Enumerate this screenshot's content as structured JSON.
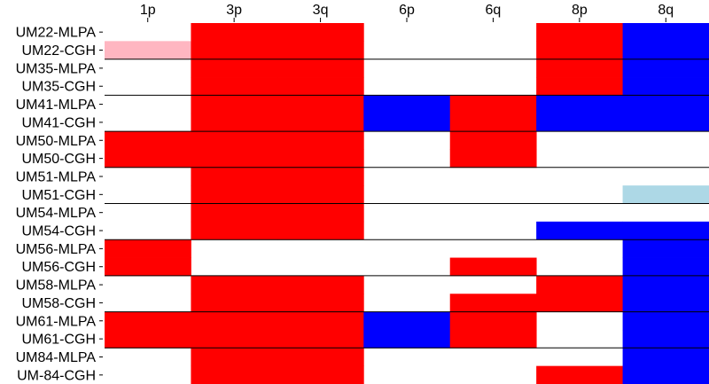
{
  "chart_data": {
    "type": "heatmap",
    "title": "",
    "xlabel": "",
    "ylabel": "",
    "columns": [
      "1p",
      "3p",
      "3q",
      "6p",
      "6q",
      "8p",
      "8q"
    ],
    "rows": [
      "UM22-MLPA",
      "UM22-CGH",
      "UM35-MLPA",
      "UM35-CGH",
      "UM41-MLPA",
      "UM41-CGH",
      "UM50-MLPA",
      "UM50-CGH",
      "UM51-MLPA",
      "UM51-CGH",
      "UM54-MLPA",
      "UM54-CGH",
      "UM56-MLPA",
      "UM56-CGH",
      "UM58-MLPA",
      "UM58-CGH",
      "UM61-MLPA",
      "UM61-CGH",
      "UM84-MLPA",
      "UM-84-CGH"
    ],
    "cells": [
      [
        "",
        "loss",
        "loss",
        "",
        "",
        "loss",
        "gain"
      ],
      [
        "loss-partial",
        "loss",
        "loss",
        "",
        "",
        "loss",
        "gain"
      ],
      [
        "",
        "loss",
        "loss",
        "",
        "",
        "loss",
        "gain"
      ],
      [
        "",
        "loss",
        "loss",
        "",
        "",
        "loss",
        "gain"
      ],
      [
        "",
        "loss",
        "loss",
        "gain",
        "loss",
        "gain",
        "gain"
      ],
      [
        "",
        "loss",
        "loss",
        "gain",
        "loss",
        "gain",
        "gain"
      ],
      [
        "loss",
        "loss",
        "loss",
        "",
        "loss",
        "",
        ""
      ],
      [
        "loss",
        "loss",
        "loss",
        "",
        "loss",
        "",
        ""
      ],
      [
        "",
        "loss",
        "loss",
        "",
        "",
        "",
        ""
      ],
      [
        "",
        "loss",
        "loss",
        "",
        "",
        "",
        "gain-partial"
      ],
      [
        "",
        "loss",
        "loss",
        "",
        "",
        "",
        ""
      ],
      [
        "",
        "loss",
        "loss",
        "",
        "",
        "gain",
        "gain"
      ],
      [
        "loss",
        "",
        "",
        "",
        "",
        "",
        "gain"
      ],
      [
        "loss",
        "",
        "",
        "",
        "loss",
        "",
        "gain"
      ],
      [
        "",
        "loss",
        "loss",
        "",
        "",
        "loss",
        "gain"
      ],
      [
        "",
        "loss",
        "loss",
        "",
        "loss",
        "loss",
        "gain"
      ],
      [
        "loss",
        "loss",
        "loss",
        "gain",
        "loss",
        "",
        "gain"
      ],
      [
        "loss",
        "loss",
        "loss",
        "gain",
        "loss",
        "",
        "gain"
      ],
      [
        "",
        "loss",
        "loss",
        "",
        "",
        "",
        "gain"
      ],
      [
        "",
        "loss",
        "loss",
        "",
        "",
        "loss",
        "gain"
      ]
    ],
    "colors": {
      "loss": "#ff0000",
      "gain": "#0000ff",
      "loss-partial": "#ffb6c1",
      "gain-partial": "#add8e6",
      "separator": "#000000",
      "background": "#ffffff"
    }
  }
}
